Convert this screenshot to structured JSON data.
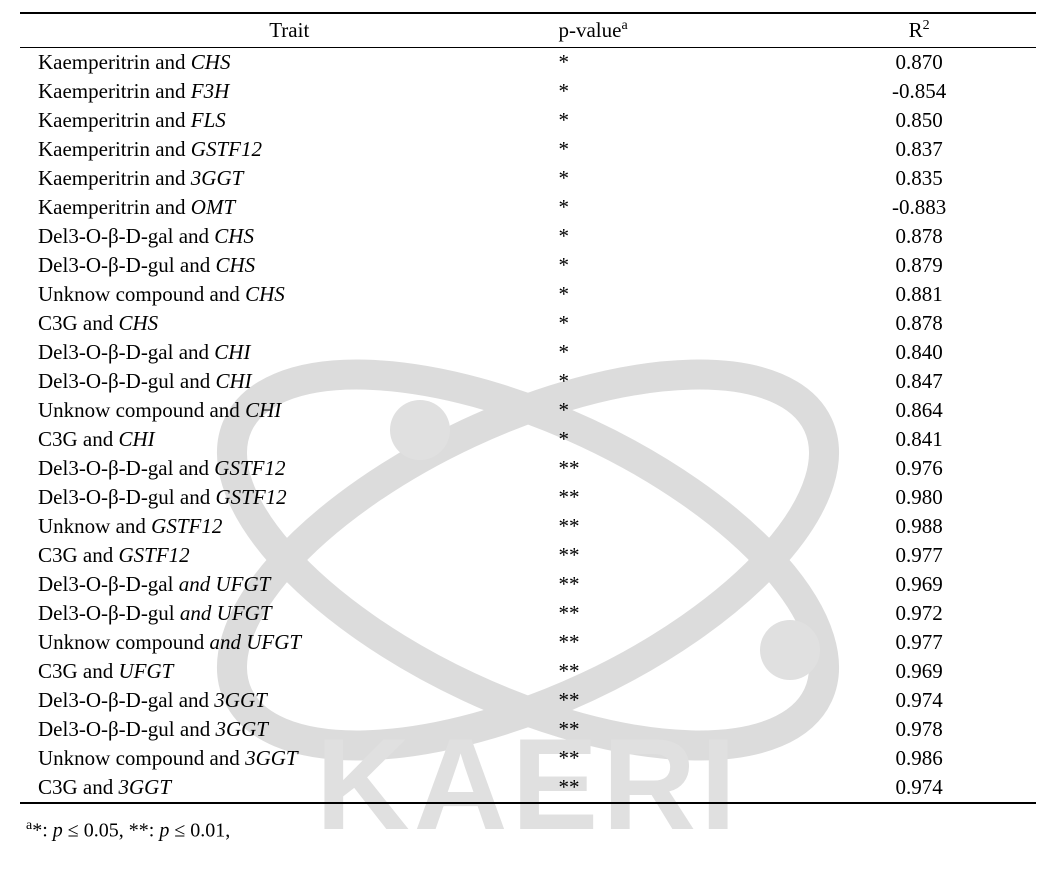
{
  "headers": {
    "col1": "Trait",
    "col2_prefix": "p-value",
    "col2_sup": "a",
    "col3_prefix": "R",
    "col3_sup": "2"
  },
  "rows": [
    {
      "trait_pre": "Kaemperitrin and ",
      "trait_gene": "CHS",
      "pvalue": "*",
      "r2": "0.870"
    },
    {
      "trait_pre": "Kaemperitrin and ",
      "trait_gene": "F3H",
      "pvalue": "*",
      "r2": "-0.854"
    },
    {
      "trait_pre": "Kaemperitrin and ",
      "trait_gene": "FLS",
      "pvalue": "*",
      "r2": "0.850"
    },
    {
      "trait_pre": "Kaemperitrin and ",
      "trait_gene": "GSTF12",
      "pvalue": "*",
      "r2": "0.837"
    },
    {
      "trait_pre": "Kaemperitrin and ",
      "trait_gene": "3GGT",
      "pvalue": "*",
      "r2": "0.835"
    },
    {
      "trait_pre": "Kaemperitrin and ",
      "trait_gene": "OMT",
      "pvalue": "*",
      "r2": "-0.883"
    },
    {
      "trait_pre": "Del3-O-β-D-gal and ",
      "trait_gene": "CHS",
      "pvalue": "*",
      "r2": "0.878"
    },
    {
      "trait_pre": "Del3-O-β-D-gul and ",
      "trait_gene": "CHS",
      "pvalue": "*",
      "r2": "0.879"
    },
    {
      "trait_pre": "Unknow compound and ",
      "trait_gene": "CHS",
      "pvalue": "*",
      "r2": "0.881"
    },
    {
      "trait_pre": "C3G and ",
      "trait_gene": "CHS",
      "pvalue": "*",
      "r2": "0.878"
    },
    {
      "trait_pre": "Del3-O-β-D-gal and ",
      "trait_gene": "CHI",
      "pvalue": "*",
      "r2": "0.840"
    },
    {
      "trait_pre": "Del3-O-β-D-gul and ",
      "trait_gene": "CHI",
      "pvalue": "*",
      "r2": "0.847"
    },
    {
      "trait_pre": "Unknow compound and ",
      "trait_gene": "CHI",
      "pvalue": "*",
      "r2": "0.864"
    },
    {
      "trait_pre": "C3G and ",
      "trait_gene": "CHI",
      "pvalue": "*",
      "r2": "0.841"
    },
    {
      "trait_pre": "Del3-O-β-D-gal and ",
      "trait_gene": "GSTF12",
      "pvalue": "**",
      "r2": "0.976"
    },
    {
      "trait_pre": "Del3-O-β-D-gul and ",
      "trait_gene": "GSTF12",
      "pvalue": "**",
      "r2": "0.980"
    },
    {
      "trait_pre": "Unknow and ",
      "trait_gene": "GSTF12",
      "pvalue": "**",
      "r2": "0.988"
    },
    {
      "trait_pre": "C3G and ",
      "trait_gene": "GSTF12",
      "pvalue": "**",
      "r2": "0.977"
    },
    {
      "trait_pre": "Del3-O-β-D-gal ",
      "trait_mid": "and ",
      "trait_gene": "UFGT",
      "pvalue": "**",
      "r2": "0.969"
    },
    {
      "trait_pre": "Del3-O-β-D-gul ",
      "trait_mid": "and ",
      "trait_gene": "UFGT",
      "pvalue": "**",
      "r2": "0.972"
    },
    {
      "trait_pre": "Unknow compound ",
      "trait_mid": "and ",
      "trait_gene": "UFGT",
      "pvalue": "**",
      "r2": "0.977"
    },
    {
      "trait_pre": "C3G and ",
      "trait_gene": "UFGT",
      "pvalue": "**",
      "r2": "0.969"
    },
    {
      "trait_pre": "Del3-O-β-D-gal and ",
      "trait_gene": "3GGT",
      "pvalue": "**",
      "r2": "0.974"
    },
    {
      "trait_pre": "Del3-O-β-D-gul and ",
      "trait_gene": "3GGT",
      "pvalue": "**",
      "r2": "0.978"
    },
    {
      "trait_pre": "Unknow  compound and ",
      "trait_gene": "3GGT",
      "pvalue": "**",
      "r2": "0.986"
    },
    {
      "trait_pre": "C3G and  ",
      "trait_gene": "3GGT",
      "pvalue": "**",
      "r2": "0.974"
    }
  ],
  "footnote": {
    "sup": "a",
    "star1": "*: ",
    "p_var": "p ",
    "le": "≤ 0.05, **: ",
    "p_var2": "p ",
    "le2": "≤ 0.01,"
  },
  "watermark": {
    "text": "KAERI",
    "color": "#e0e0e0",
    "orbit_color": "#dcdcdc"
  }
}
